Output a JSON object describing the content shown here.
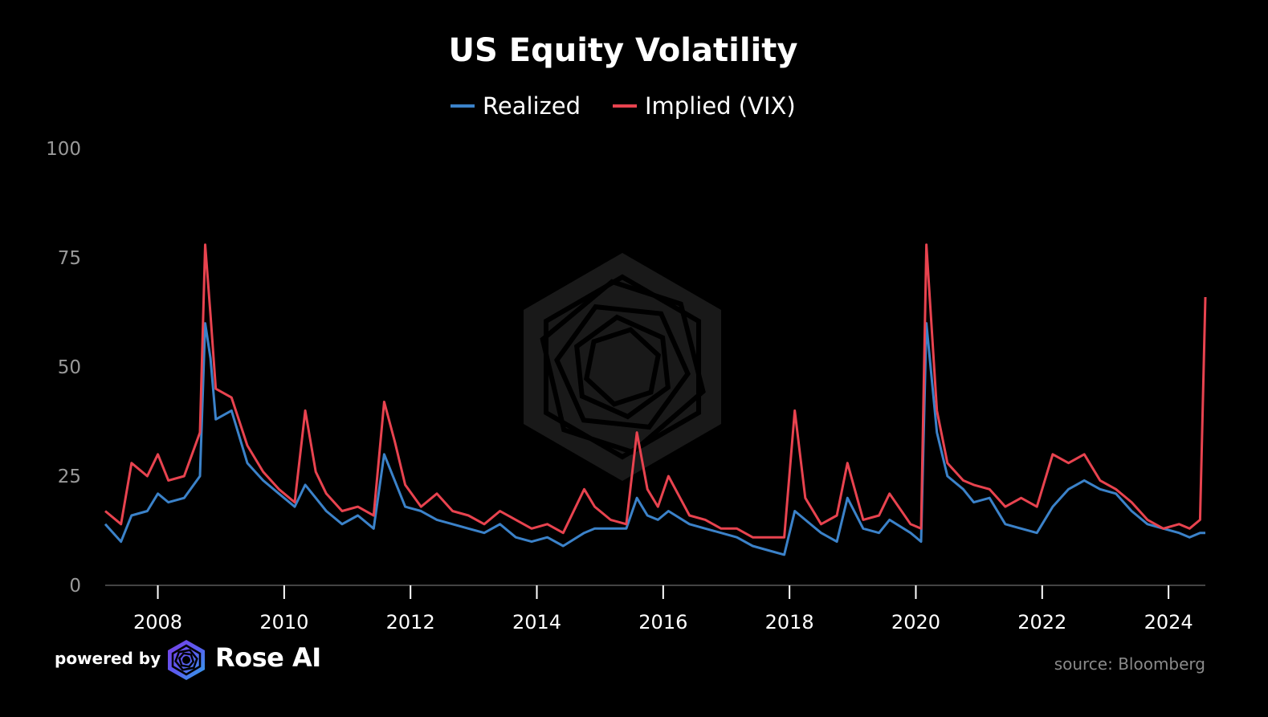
{
  "chart_data": {
    "type": "line",
    "title": "US Equity Volatility",
    "xlabel": "",
    "ylabel": "",
    "ylim": [
      0,
      100
    ],
    "yticks": [
      "0",
      "25",
      "50",
      "75",
      "100"
    ],
    "xticks": [
      "2008",
      "2010",
      "2012",
      "2014",
      "2016",
      "2018",
      "2020",
      "2022",
      "2024"
    ],
    "xlim": [
      "2007-03",
      "2024-08"
    ],
    "grid": false,
    "legend": "top-center",
    "x": [
      "2007-03",
      "2007-06",
      "2007-08",
      "2007-11",
      "2008-01",
      "2008-03",
      "2008-06",
      "2008-09",
      "2008-10",
      "2008-11",
      "2008-12",
      "2009-03",
      "2009-06",
      "2009-09",
      "2009-12",
      "2010-03",
      "2010-05",
      "2010-07",
      "2010-09",
      "2010-12",
      "2011-03",
      "2011-06",
      "2011-08",
      "2011-10",
      "2011-12",
      "2012-03",
      "2012-06",
      "2012-09",
      "2012-12",
      "2013-03",
      "2013-06",
      "2013-09",
      "2013-12",
      "2014-03",
      "2014-06",
      "2014-10",
      "2014-12",
      "2015-03",
      "2015-06",
      "2015-08",
      "2015-10",
      "2015-12",
      "2016-02",
      "2016-06",
      "2016-09",
      "2016-12",
      "2017-03",
      "2017-06",
      "2017-09",
      "2017-12",
      "2018-02",
      "2018-04",
      "2018-07",
      "2018-10",
      "2018-12",
      "2019-03",
      "2019-06",
      "2019-08",
      "2019-12",
      "2020-02",
      "2020-03",
      "2020-05",
      "2020-07",
      "2020-10",
      "2020-12",
      "2021-03",
      "2021-06",
      "2021-09",
      "2021-12",
      "2022-03",
      "2022-06",
      "2022-09",
      "2022-12",
      "2023-03",
      "2023-06",
      "2023-09",
      "2023-12",
      "2024-03",
      "2024-05",
      "2024-07",
      "2024-08"
    ],
    "series": [
      {
        "name": "Realized",
        "color": "#3b82c9",
        "values": [
          14,
          10,
          16,
          17,
          21,
          19,
          20,
          25,
          60,
          52,
          38,
          40,
          28,
          24,
          21,
          18,
          23,
          20,
          17,
          14,
          16,
          13,
          30,
          24,
          18,
          17,
          15,
          14,
          13,
          12,
          14,
          11,
          10,
          11,
          9,
          12,
          13,
          13,
          13,
          20,
          16,
          15,
          17,
          14,
          13,
          12,
          11,
          9,
          8,
          7,
          17,
          15,
          12,
          10,
          20,
          13,
          12,
          15,
          12,
          10,
          60,
          35,
          25,
          22,
          19,
          20,
          14,
          13,
          12,
          18,
          22,
          24,
          22,
          21,
          17,
          14,
          13,
          12,
          11,
          12,
          12
        ]
      },
      {
        "name": "Implied (VIX)",
        "color": "#e8434f",
        "values": [
          17,
          14,
          28,
          25,
          30,
          24,
          25,
          35,
          78,
          62,
          45,
          43,
          32,
          26,
          22,
          19,
          40,
          26,
          21,
          17,
          18,
          16,
          42,
          33,
          23,
          18,
          21,
          17,
          16,
          14,
          17,
          15,
          13,
          14,
          12,
          22,
          18,
          15,
          14,
          35,
          22,
          18,
          25,
          16,
          15,
          13,
          13,
          11,
          11,
          11,
          40,
          20,
          14,
          16,
          28,
          15,
          16,
          21,
          14,
          13,
          78,
          40,
          28,
          24,
          23,
          22,
          18,
          20,
          18,
          30,
          28,
          30,
          24,
          22,
          19,
          15,
          13,
          14,
          13,
          15,
          66
        ]
      }
    ]
  },
  "footer": {
    "powered_by": "powered by",
    "brand": "Rose AI",
    "source": "source: Bloomberg"
  }
}
